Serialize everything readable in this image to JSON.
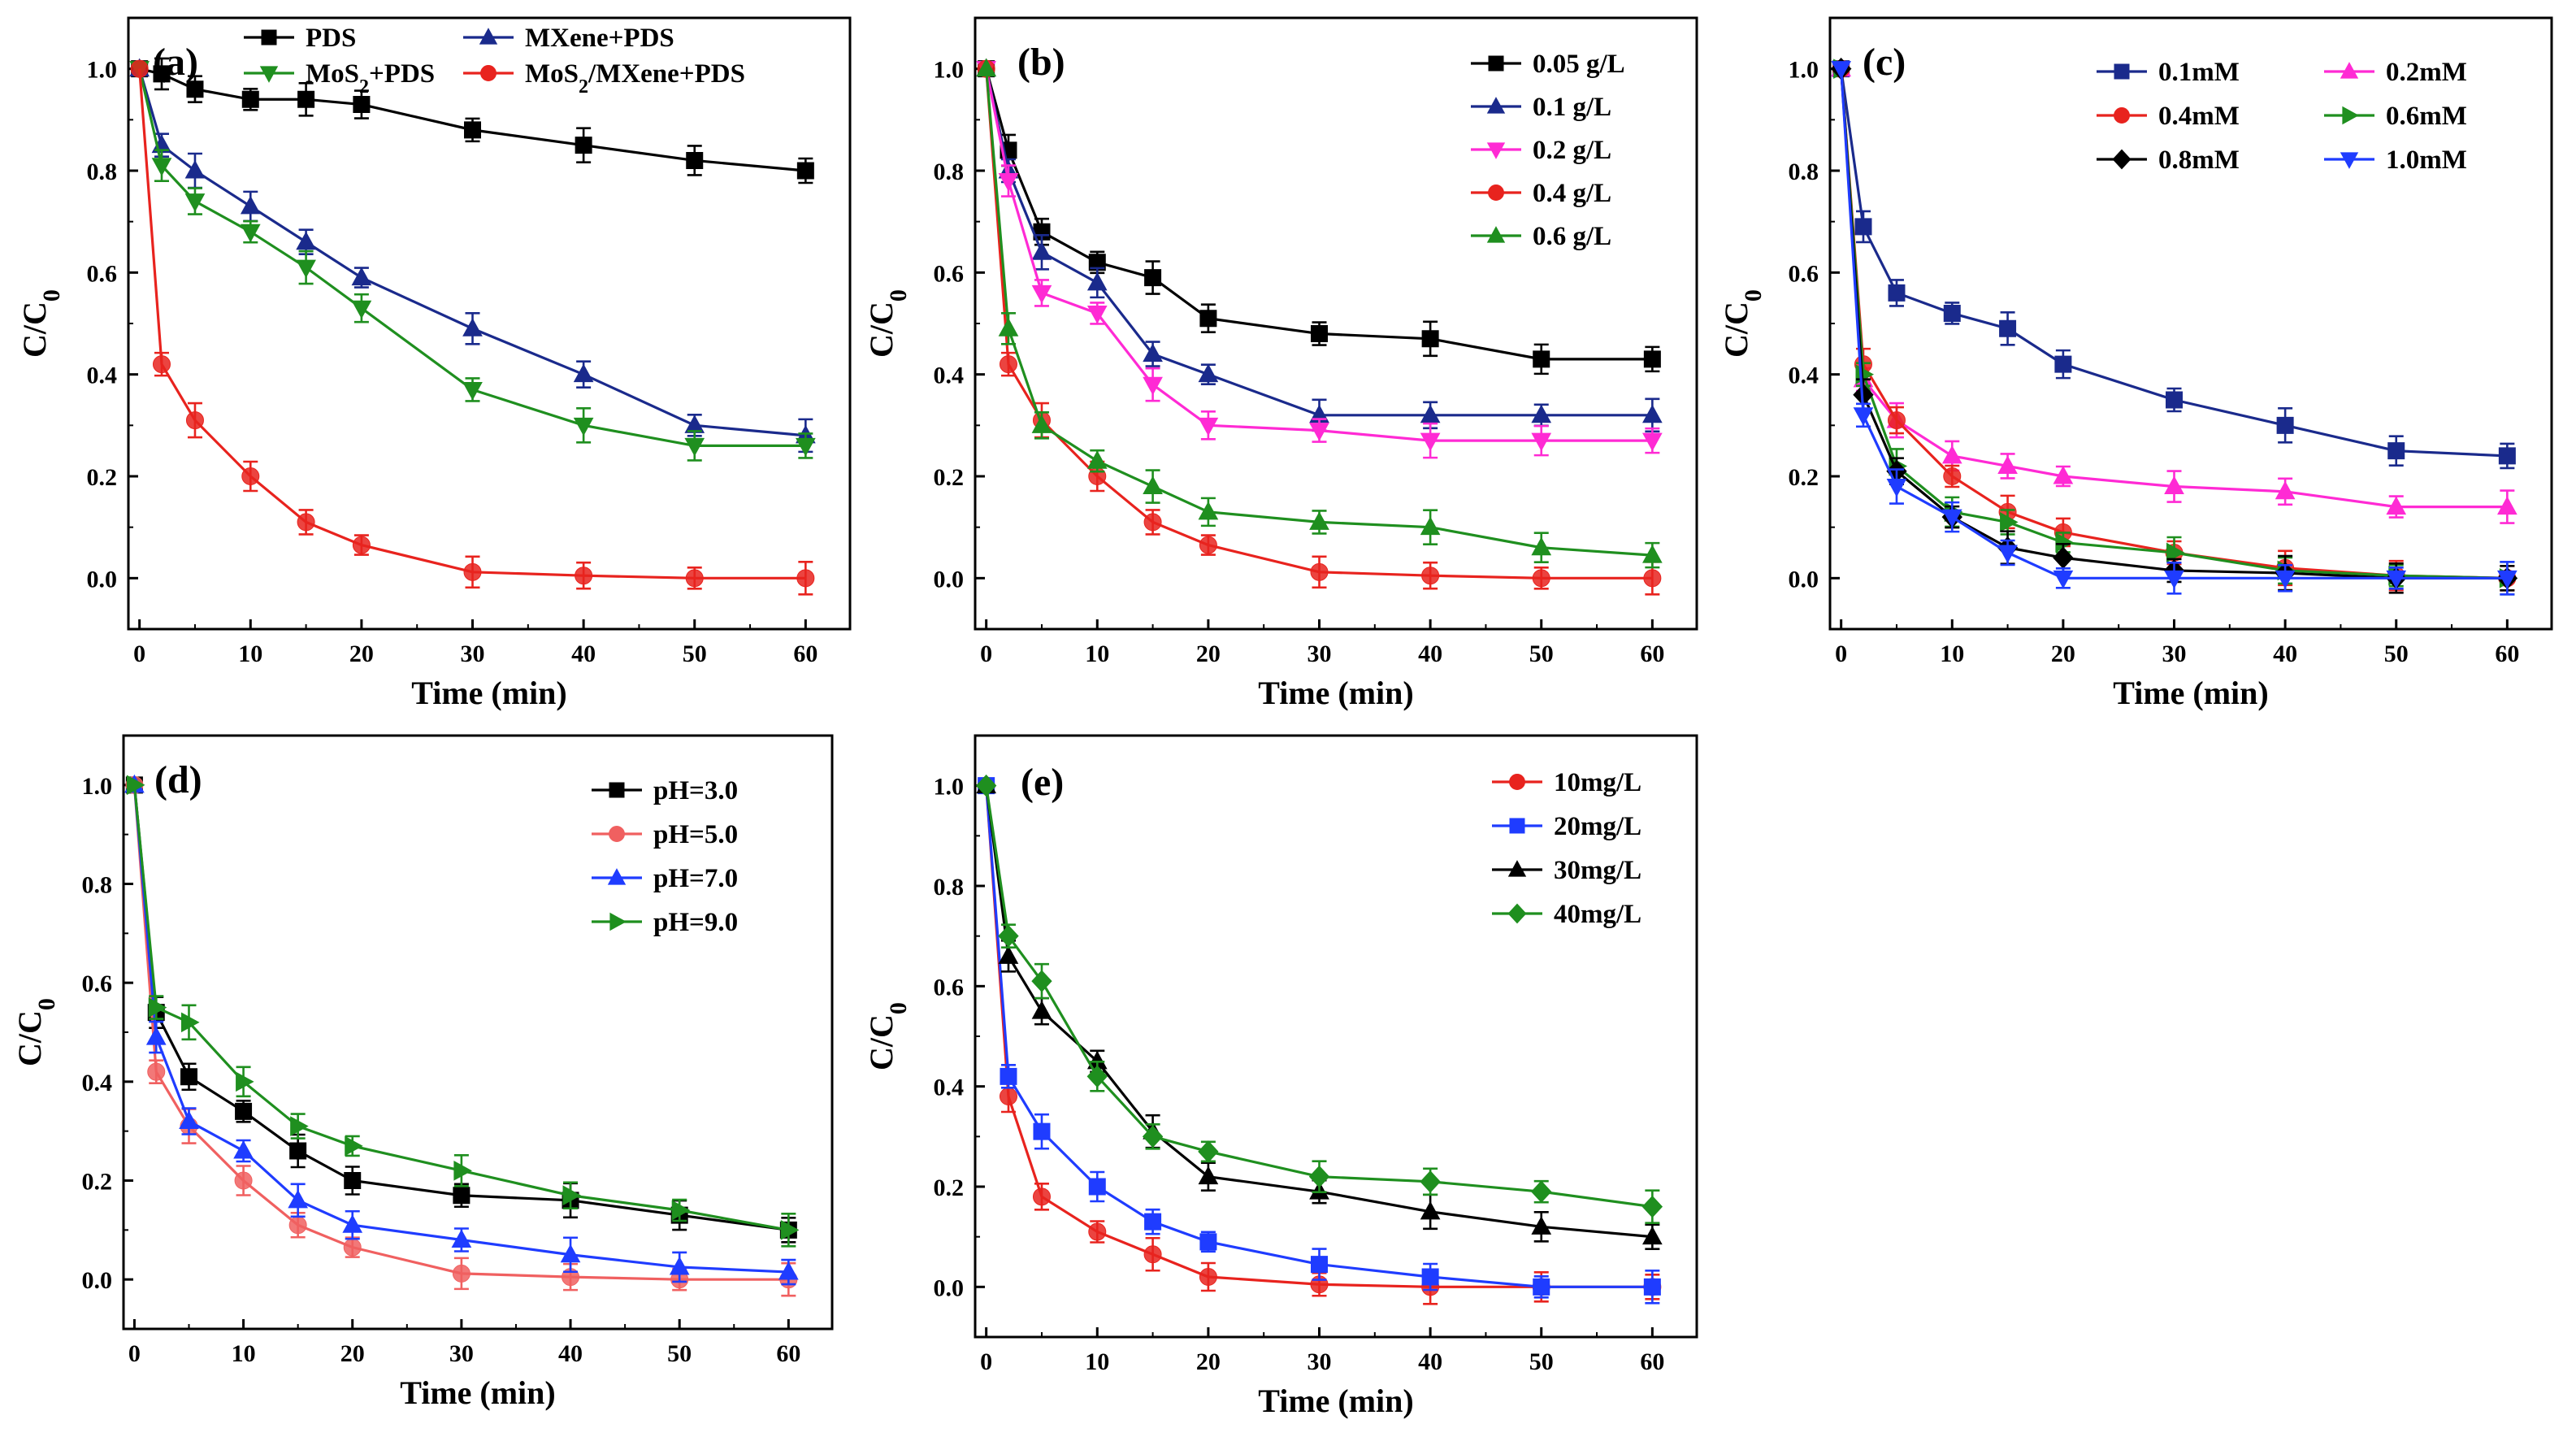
{
  "chart_data": [
    {
      "type": "line",
      "panel": "(a)",
      "xlabel": "Time (min)",
      "ylabel": "C/C0",
      "xlim": [
        -1,
        64
      ],
      "ylim": [
        -0.1,
        1.1
      ],
      "xticks": [
        0,
        10,
        20,
        30,
        40,
        50,
        60
      ],
      "yticks": [
        0.0,
        0.2,
        0.4,
        0.6,
        0.8,
        1.0
      ],
      "legend_position": "top",
      "legend_columns": 2,
      "x": [
        0,
        2,
        5,
        10,
        15,
        20,
        30,
        40,
        50,
        60
      ],
      "series": [
        {
          "name": "PDS",
          "color": "#000000",
          "marker": "square",
          "values": [
            1.0,
            0.99,
            0.96,
            0.94,
            0.94,
            0.93,
            0.88,
            0.85,
            0.82,
            0.8
          ]
        },
        {
          "name": "MXene+PDS",
          "color": "#1a2a8c",
          "marker": "triangle-up",
          "values": [
            1.0,
            0.85,
            0.8,
            0.73,
            0.66,
            0.59,
            0.49,
            0.4,
            0.3,
            0.28
          ]
        },
        {
          "name": "MoS2+PDS",
          "color": "#1f8f1f",
          "marker": "triangle-down",
          "values": [
            1.0,
            0.81,
            0.74,
            0.68,
            0.61,
            0.53,
            0.37,
            0.3,
            0.26,
            0.26
          ]
        },
        {
          "name": "MoS2/MXene+PDS",
          "color": "#e8231e",
          "marker": "circle",
          "values": [
            1.0,
            0.42,
            0.31,
            0.2,
            0.11,
            0.065,
            0.012,
            0.005,
            0.0,
            0.0
          ]
        }
      ]
    },
    {
      "type": "line",
      "panel": "(b)",
      "xlabel": "Time (min)",
      "ylabel": "C/C0",
      "xlim": [
        -1,
        64
      ],
      "ylim": [
        -0.1,
        1.1
      ],
      "xticks": [
        0,
        10,
        20,
        30,
        40,
        50,
        60
      ],
      "yticks": [
        0.0,
        0.2,
        0.4,
        0.6,
        0.8,
        1.0
      ],
      "legend_position": "top-right",
      "legend_columns": 1,
      "x": [
        0,
        2,
        5,
        10,
        15,
        20,
        30,
        40,
        50,
        60
      ],
      "series": [
        {
          "name": "0.05 g/L",
          "color": "#000000",
          "marker": "square",
          "values": [
            1.0,
            0.84,
            0.68,
            0.62,
            0.59,
            0.51,
            0.48,
            0.47,
            0.43,
            0.43
          ]
        },
        {
          "name": "0.1 g/L",
          "color": "#1a2a8c",
          "marker": "triangle-up",
          "values": [
            1.0,
            0.8,
            0.64,
            0.58,
            0.44,
            0.4,
            0.32,
            0.32,
            0.32,
            0.32
          ]
        },
        {
          "name": "0.2 g/L",
          "color": "#ff2ad4",
          "marker": "triangle-down",
          "values": [
            1.0,
            0.78,
            0.56,
            0.52,
            0.38,
            0.3,
            0.29,
            0.27,
            0.27,
            0.27
          ]
        },
        {
          "name": "0.4 g/L",
          "color": "#e8231e",
          "marker": "circle",
          "values": [
            1.0,
            0.42,
            0.31,
            0.2,
            0.11,
            0.065,
            0.012,
            0.005,
            0.0,
            0.0
          ]
        },
        {
          "name": "0.6 g/L",
          "color": "#1f8f1f",
          "marker": "triangle-up",
          "values": [
            1.0,
            0.49,
            0.3,
            0.23,
            0.18,
            0.13,
            0.11,
            0.1,
            0.06,
            0.045
          ]
        }
      ]
    },
    {
      "type": "line",
      "panel": "(c)",
      "xlabel": "Time (min)",
      "ylabel": "C/C0",
      "xlim": [
        -1,
        64
      ],
      "ylim": [
        -0.1,
        1.1
      ],
      "xticks": [
        0,
        10,
        20,
        30,
        40,
        50,
        60
      ],
      "yticks": [
        0.0,
        0.2,
        0.4,
        0.6,
        0.8,
        1.0
      ],
      "legend_position": "top-right",
      "legend_columns": 2,
      "x": [
        0,
        2,
        5,
        10,
        15,
        20,
        30,
        40,
        50,
        60
      ],
      "series": [
        {
          "name": "0.1mM",
          "color": "#1a2a8c",
          "marker": "square",
          "values": [
            1.0,
            0.69,
            0.56,
            0.52,
            0.49,
            0.42,
            0.35,
            0.3,
            0.25,
            0.24
          ]
        },
        {
          "name": "0.2mM",
          "color": "#ff2ad4",
          "marker": "triangle-up",
          "values": [
            1.0,
            0.39,
            0.31,
            0.24,
            0.22,
            0.2,
            0.18,
            0.17,
            0.14,
            0.14
          ]
        },
        {
          "name": "0.4mM",
          "color": "#e8231e",
          "marker": "circle",
          "values": [
            1.0,
            0.42,
            0.31,
            0.2,
            0.13,
            0.09,
            0.05,
            0.02,
            0.005,
            0.0
          ]
        },
        {
          "name": "0.6mM",
          "color": "#1f8f1f",
          "marker": "triangle-right",
          "values": [
            1.0,
            0.4,
            0.22,
            0.13,
            0.11,
            0.07,
            0.05,
            0.015,
            0.005,
            0.0
          ]
        },
        {
          "name": "0.8mM",
          "color": "#000000",
          "marker": "diamond",
          "values": [
            1.0,
            0.36,
            0.21,
            0.12,
            0.06,
            0.04,
            0.015,
            0.01,
            0.0,
            0.0
          ]
        },
        {
          "name": "1.0mM",
          "color": "#1f3cff",
          "marker": "triangle-down",
          "values": [
            1.0,
            0.32,
            0.18,
            0.12,
            0.05,
            0.0,
            0.0,
            0.0,
            0.0,
            0.0
          ]
        }
      ]
    },
    {
      "type": "line",
      "panel": "(d)",
      "xlabel": "Time (min)",
      "ylabel": "C/C0",
      "xlim": [
        -1,
        64
      ],
      "ylim": [
        -0.1,
        1.1
      ],
      "xticks": [
        0,
        10,
        20,
        30,
        40,
        50,
        60
      ],
      "yticks": [
        0.0,
        0.2,
        0.4,
        0.6,
        0.8,
        1.0
      ],
      "legend_position": "top-right",
      "legend_columns": 1,
      "x": [
        0,
        2,
        5,
        10,
        15,
        20,
        30,
        40,
        50,
        60
      ],
      "series": [
        {
          "name": "pH=3.0",
          "color": "#000000",
          "marker": "square",
          "values": [
            1.0,
            0.54,
            0.41,
            0.34,
            0.26,
            0.2,
            0.17,
            0.16,
            0.13,
            0.1
          ]
        },
        {
          "name": "pH=5.0",
          "color": "#f06060",
          "marker": "circle",
          "values": [
            1.0,
            0.42,
            0.31,
            0.2,
            0.11,
            0.065,
            0.012,
            0.005,
            0.0,
            0.0
          ]
        },
        {
          "name": "pH=7.0",
          "color": "#1f3cff",
          "marker": "triangle-up",
          "values": [
            1.0,
            0.49,
            0.32,
            0.26,
            0.16,
            0.11,
            0.08,
            0.05,
            0.025,
            0.015
          ]
        },
        {
          "name": "pH=9.0",
          "color": "#1f8f1f",
          "marker": "triangle-right",
          "values": [
            1.0,
            0.55,
            0.52,
            0.4,
            0.31,
            0.27,
            0.22,
            0.17,
            0.14,
            0.1
          ]
        }
      ]
    },
    {
      "type": "line",
      "panel": "(e)",
      "xlabel": "Time (min)",
      "ylabel": "C/C0",
      "xlim": [
        -1,
        64
      ],
      "ylim": [
        -0.1,
        1.1
      ],
      "xticks": [
        0,
        10,
        20,
        30,
        40,
        50,
        60
      ],
      "yticks": [
        0.0,
        0.2,
        0.4,
        0.6,
        0.8,
        1.0
      ],
      "legend_position": "top-right",
      "legend_columns": 1,
      "x": [
        0,
        2,
        5,
        10,
        15,
        20,
        30,
        40,
        50,
        60
      ],
      "series": [
        {
          "name": "10mg/L",
          "color": "#e8231e",
          "marker": "circle",
          "values": [
            1.0,
            0.38,
            0.18,
            0.11,
            0.065,
            0.02,
            0.005,
            0.0,
            0.0,
            0.0
          ]
        },
        {
          "name": "20mg/L",
          "color": "#1f3cff",
          "marker": "square",
          "values": [
            1.0,
            0.42,
            0.31,
            0.2,
            0.13,
            0.09,
            0.045,
            0.02,
            0.0,
            0.0
          ]
        },
        {
          "name": "30mg/L",
          "color": "#000000",
          "marker": "triangle-up",
          "values": [
            1.0,
            0.66,
            0.55,
            0.45,
            0.31,
            0.22,
            0.19,
            0.15,
            0.12,
            0.1
          ]
        },
        {
          "name": "40mg/L",
          "color": "#1f8f1f",
          "marker": "diamond",
          "values": [
            1.0,
            0.7,
            0.61,
            0.42,
            0.3,
            0.27,
            0.22,
            0.21,
            0.19,
            0.16
          ]
        }
      ]
    }
  ]
}
